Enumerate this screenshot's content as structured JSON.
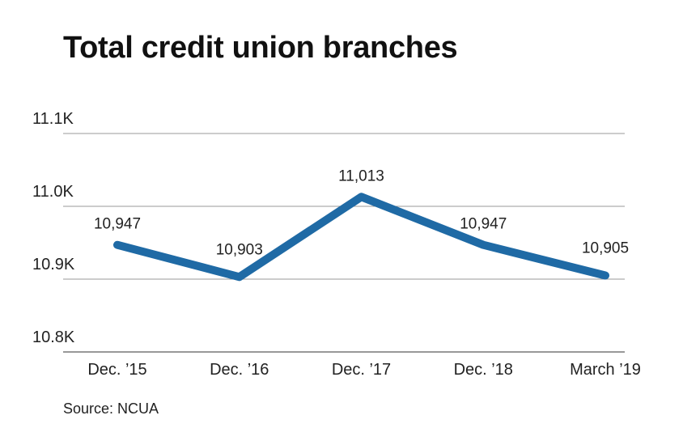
{
  "title": "Total credit union branches",
  "source": "Source: NCUA",
  "chart_data": {
    "type": "line",
    "title": "Total credit union branches",
    "categories": [
      "Dec. ’15",
      "Dec. ’16",
      "Dec. ’17",
      "Dec. ’18",
      "March ’19"
    ],
    "values": [
      10947,
      10903,
      11013,
      10947,
      10905
    ],
    "data_labels": [
      "10,947",
      "10,903",
      "11,013",
      "10,947",
      "10,905"
    ],
    "y_ticks": [
      10800,
      10900,
      11000,
      11100
    ],
    "y_tick_labels": [
      "10.8K",
      "10.9K",
      "11.0K",
      "11.1K"
    ],
    "ylim": [
      10800,
      11100
    ],
    "grid": true,
    "line_color": "#1f6aa5",
    "grid_color": "#9a9a9a",
    "xlabel": "",
    "ylabel": ""
  }
}
